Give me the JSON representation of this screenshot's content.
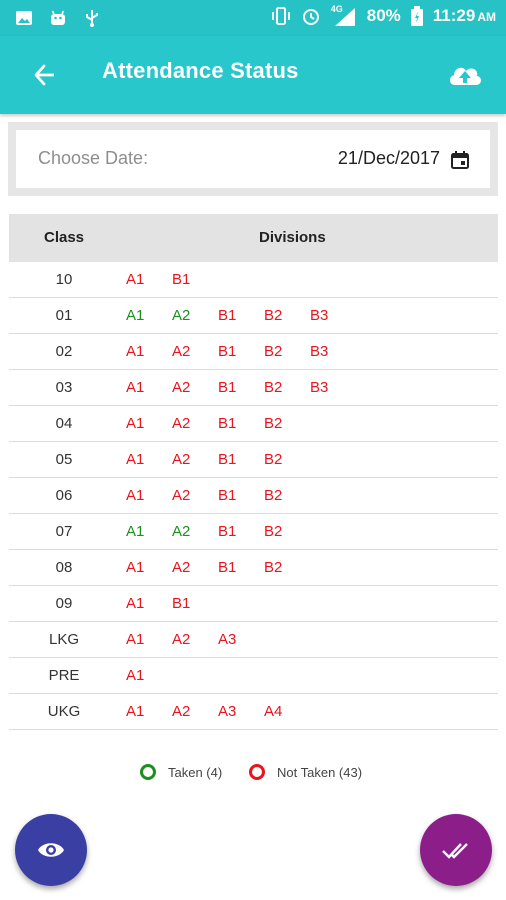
{
  "status_bar": {
    "network": "4G",
    "battery": "80%",
    "time": "11:29",
    "ampm": "AM",
    "icons": [
      "image-icon",
      "android-icon",
      "usb-icon",
      "vibrate-icon",
      "alarm-icon",
      "signal-icon",
      "battery-icon"
    ]
  },
  "app_bar": {
    "title": "Attendance Status",
    "back_icon": "arrow-back-icon",
    "upload_icon": "cloud-upload-icon"
  },
  "date_picker": {
    "label": "Choose Date:",
    "value": "21/Dec/2017",
    "icon": "calendar-icon"
  },
  "table": {
    "headers": {
      "class": "Class",
      "divisions": "Divisions"
    },
    "rows": [
      {
        "class": "10",
        "divisions": [
          {
            "name": "A1",
            "status": "not-taken"
          },
          {
            "name": "B1",
            "status": "not-taken"
          }
        ]
      },
      {
        "class": "01",
        "divisions": [
          {
            "name": "A1",
            "status": "taken"
          },
          {
            "name": "A2",
            "status": "taken"
          },
          {
            "name": "B1",
            "status": "not-taken"
          },
          {
            "name": "B2",
            "status": "not-taken"
          },
          {
            "name": "B3",
            "status": "not-taken"
          }
        ]
      },
      {
        "class": "02",
        "divisions": [
          {
            "name": "A1",
            "status": "not-taken"
          },
          {
            "name": "A2",
            "status": "not-taken"
          },
          {
            "name": "B1",
            "status": "not-taken"
          },
          {
            "name": "B2",
            "status": "not-taken"
          },
          {
            "name": "B3",
            "status": "not-taken"
          }
        ]
      },
      {
        "class": "03",
        "divisions": [
          {
            "name": "A1",
            "status": "not-taken"
          },
          {
            "name": "A2",
            "status": "not-taken"
          },
          {
            "name": "B1",
            "status": "not-taken"
          },
          {
            "name": "B2",
            "status": "not-taken"
          },
          {
            "name": "B3",
            "status": "not-taken"
          }
        ]
      },
      {
        "class": "04",
        "divisions": [
          {
            "name": "A1",
            "status": "not-taken"
          },
          {
            "name": "A2",
            "status": "not-taken"
          },
          {
            "name": "B1",
            "status": "not-taken"
          },
          {
            "name": "B2",
            "status": "not-taken"
          }
        ]
      },
      {
        "class": "05",
        "divisions": [
          {
            "name": "A1",
            "status": "not-taken"
          },
          {
            "name": "A2",
            "status": "not-taken"
          },
          {
            "name": "B1",
            "status": "not-taken"
          },
          {
            "name": "B2",
            "status": "not-taken"
          }
        ]
      },
      {
        "class": "06",
        "divisions": [
          {
            "name": "A1",
            "status": "not-taken"
          },
          {
            "name": "A2",
            "status": "not-taken"
          },
          {
            "name": "B1",
            "status": "not-taken"
          },
          {
            "name": "B2",
            "status": "not-taken"
          }
        ]
      },
      {
        "class": "07",
        "divisions": [
          {
            "name": "A1",
            "status": "taken"
          },
          {
            "name": "A2",
            "status": "taken"
          },
          {
            "name": "B1",
            "status": "not-taken"
          },
          {
            "name": "B2",
            "status": "not-taken"
          }
        ]
      },
      {
        "class": "08",
        "divisions": [
          {
            "name": "A1",
            "status": "not-taken"
          },
          {
            "name": "A2",
            "status": "not-taken"
          },
          {
            "name": "B1",
            "status": "not-taken"
          },
          {
            "name": "B2",
            "status": "not-taken"
          }
        ]
      },
      {
        "class": "09",
        "divisions": [
          {
            "name": "A1",
            "status": "not-taken"
          },
          {
            "name": "B1",
            "status": "not-taken"
          }
        ]
      },
      {
        "class": "LKG",
        "divisions": [
          {
            "name": "A1",
            "status": "not-taken"
          },
          {
            "name": "A2",
            "status": "not-taken"
          },
          {
            "name": "A3",
            "status": "not-taken"
          }
        ]
      },
      {
        "class": "PRE",
        "divisions": [
          {
            "name": "A1",
            "status": "not-taken"
          }
        ]
      },
      {
        "class": "UKG",
        "divisions": [
          {
            "name": "A1",
            "status": "not-taken"
          },
          {
            "name": "A2",
            "status": "not-taken"
          },
          {
            "name": "A3",
            "status": "not-taken"
          },
          {
            "name": "A4",
            "status": "not-taken"
          }
        ]
      }
    ]
  },
  "legend": {
    "taken_label": "Taken (4)",
    "not_taken_label": "Not Taken (43)"
  },
  "fabs": {
    "view_icon": "eye-icon",
    "done_icon": "done-all-icon"
  },
  "colors": {
    "primary": "#27c7cb",
    "taken": "#1e8e1e",
    "not_taken": "#e8141e",
    "fab_view": "#3a3fa3",
    "fab_done": "#8b1e89"
  }
}
